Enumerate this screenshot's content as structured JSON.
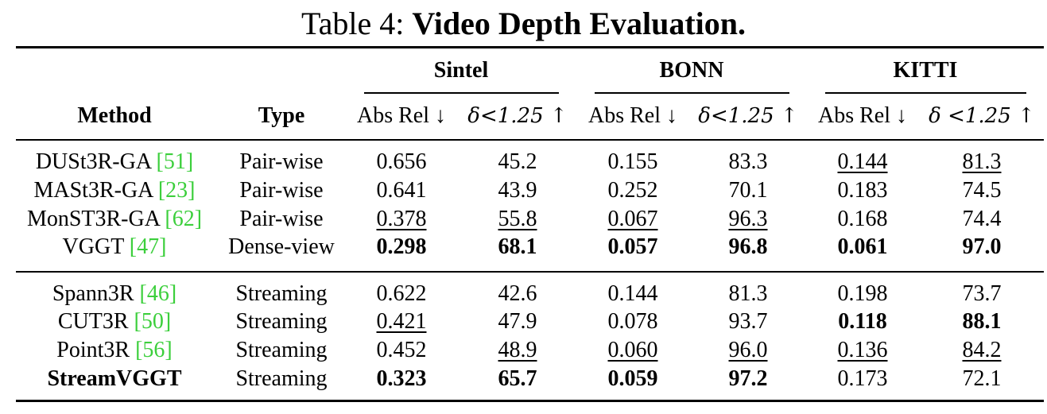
{
  "caption": {
    "prefix": "Table 4: ",
    "title": "Video Depth Evaluation."
  },
  "header": {
    "method": "Method",
    "type": "Type",
    "groups": [
      "Sintel",
      "BONN",
      "KITTI"
    ],
    "metric_absrel": "Abs Rel ↓",
    "metric_delta": "δ<1.25 ↑",
    "metric_delta_kitti": "δ <1.25 ↑"
  },
  "rows": [
    {
      "method": "DUSt3R-GA ",
      "cite": "[51]",
      "type": "Pair-wise",
      "values": [
        "0.656",
        "45.2",
        "0.155",
        "83.3",
        "0.144",
        "81.3"
      ],
      "style": [
        "",
        "",
        "",
        "",
        "u",
        "u"
      ]
    },
    {
      "method": "MASt3R-GA ",
      "cite": "[23]",
      "type": "Pair-wise",
      "values": [
        "0.641",
        "43.9",
        "0.252",
        "70.1",
        "0.183",
        "74.5"
      ],
      "style": [
        "",
        "",
        "",
        "",
        "",
        ""
      ]
    },
    {
      "method": "MonST3R-GA ",
      "cite": "[62]",
      "type": "Pair-wise",
      "values": [
        "0.378",
        "55.8",
        "0.067",
        "96.3",
        "0.168",
        "74.4"
      ],
      "style": [
        "u",
        "u",
        "u",
        "u",
        "",
        ""
      ]
    },
    {
      "method": "VGGT ",
      "cite": "[47]",
      "type": "Dense-view",
      "values": [
        "0.298",
        "68.1",
        "0.057",
        "96.8",
        "0.061",
        "97.0"
      ],
      "style": [
        "b",
        "b",
        "b",
        "b",
        "b",
        "b"
      ]
    },
    {
      "method": "Spann3R ",
      "cite": "[46]",
      "type": "Streaming",
      "values": [
        "0.622",
        "42.6",
        "0.144",
        "81.3",
        "0.198",
        "73.7"
      ],
      "style": [
        "",
        "",
        "",
        "",
        "",
        ""
      ]
    },
    {
      "method": "CUT3R ",
      "cite": "[50]",
      "type": "Streaming",
      "values": [
        "0.421",
        "47.9",
        "0.078",
        "93.7",
        "0.118",
        "88.1"
      ],
      "style": [
        "u",
        "",
        "",
        "",
        "b",
        "b"
      ]
    },
    {
      "method": "Point3R ",
      "cite": "[56]",
      "type": "Streaming",
      "values": [
        "0.452",
        "48.9",
        "0.060",
        "96.0",
        "0.136",
        "84.2"
      ],
      "style": [
        "",
        "u",
        "u",
        "u",
        "u",
        "u"
      ]
    },
    {
      "method": "StreamVGGT",
      "cite": "",
      "type": "Streaming",
      "method_bold": true,
      "values": [
        "0.323",
        "65.7",
        "0.059",
        "97.2",
        "0.173",
        "72.1"
      ],
      "style": [
        "b",
        "b",
        "b",
        "b",
        "",
        ""
      ]
    }
  ]
}
